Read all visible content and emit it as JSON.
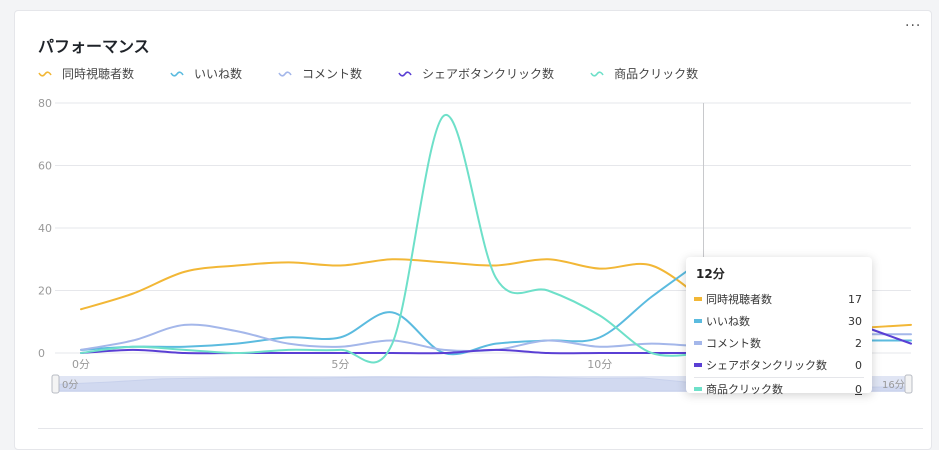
{
  "card": {
    "title": "パフォーマンス",
    "more_icon": "more-horizontal-icon"
  },
  "legend": {
    "items": [
      {
        "label": "同時視聴者数",
        "color": "#f2b736"
      },
      {
        "label": "いいね数",
        "color": "#5bbbdf"
      },
      {
        "label": "コメント数",
        "color": "#a4b7ea"
      },
      {
        "label": "シェアボタンクリック数",
        "color": "#5a3fd4"
      },
      {
        "label": "商品クリック数",
        "color": "#6ee0c9"
      }
    ]
  },
  "tooltip": {
    "title": "12分",
    "rows": [
      {
        "label": "同時視聴者数",
        "value": "17",
        "color": "#f2b736"
      },
      {
        "label": "いいね数",
        "value": "30",
        "color": "#5bbbdf"
      },
      {
        "label": "コメント数",
        "value": "2",
        "color": "#a4b7ea"
      },
      {
        "label": "シェアボタンクリック数",
        "value": "0",
        "color": "#5a3fd4"
      },
      {
        "label": "商品クリック数",
        "value": "0",
        "color": "#6ee0c9"
      }
    ]
  },
  "slider": {
    "start_label": "0分",
    "end_label": "16分"
  },
  "chart_data": {
    "type": "line",
    "title": "パフォーマンス",
    "xlabel": "",
    "ylabel": "",
    "x": [
      0,
      1,
      2,
      3,
      4,
      5,
      6,
      7,
      8,
      9,
      10,
      11,
      12,
      13,
      14,
      15,
      16
    ],
    "x_tick_labels": [
      "0分",
      "5分",
      "10分"
    ],
    "x_ticks": [
      0,
      5,
      10
    ],
    "ylim": [
      0,
      80
    ],
    "y_ticks": [
      0,
      20,
      40,
      60,
      80
    ],
    "grid": true,
    "legend_position": "top-left",
    "crosshair_x": 12,
    "series": [
      {
        "name": "同時視聴者数",
        "color": "#f2b736",
        "values": [
          14,
          19,
          26,
          28,
          29,
          28,
          30,
          29,
          28,
          30,
          27,
          28,
          17,
          null,
          null,
          8,
          9
        ]
      },
      {
        "name": "いいね数",
        "color": "#5bbbdf",
        "values": [
          1,
          2,
          2,
          3,
          5,
          5,
          13,
          0,
          3,
          4,
          5,
          18,
          30,
          null,
          null,
          4,
          4
        ]
      },
      {
        "name": "コメント数",
        "color": "#a4b7ea",
        "values": [
          1,
          4,
          9,
          7,
          3,
          2,
          4,
          1,
          1,
          4,
          2,
          3,
          2,
          null,
          null,
          6,
          6
        ]
      },
      {
        "name": "シェアボタンクリック数",
        "color": "#5a3fd4",
        "values": [
          0,
          1,
          0,
          0,
          0,
          0,
          0,
          0,
          1,
          0,
          0,
          0,
          0,
          null,
          null,
          9,
          3
        ]
      },
      {
        "name": "商品クリック数",
        "color": "#6ee0c9",
        "values": [
          0,
          2,
          1,
          0,
          1,
          1,
          3,
          76,
          24,
          20,
          12,
          0,
          0,
          null,
          null,
          null,
          null
        ]
      }
    ]
  }
}
